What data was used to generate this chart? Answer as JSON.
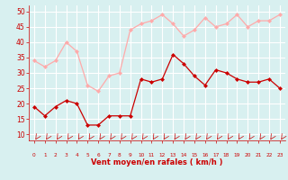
{
  "hours": [
    0,
    1,
    2,
    3,
    4,
    5,
    6,
    7,
    8,
    9,
    10,
    11,
    12,
    13,
    14,
    15,
    16,
    17,
    18,
    19,
    20,
    21,
    22,
    23
  ],
  "wind_avg": [
    19,
    16,
    19,
    21,
    20,
    13,
    13,
    16,
    16,
    16,
    28,
    27,
    28,
    36,
    33,
    29,
    26,
    31,
    30,
    28,
    27,
    27,
    28,
    25
  ],
  "wind_gust": [
    34,
    32,
    34,
    40,
    37,
    26,
    24,
    29,
    30,
    44,
    46,
    47,
    49,
    46,
    42,
    44,
    48,
    45,
    46,
    49,
    45,
    47,
    47,
    49
  ],
  "bg_color": "#d8f0f0",
  "grid_color": "#ffffff",
  "avg_color": "#cc0000",
  "gust_color": "#ffaaaa",
  "xlabel": "Vent moyen/en rafales ( km/h )",
  "xlabel_color": "#cc0000",
  "tick_color": "#cc0000",
  "arrow_color": "#cc0000",
  "ylim": [
    8,
    52
  ],
  "yticks": [
    10,
    15,
    20,
    25,
    30,
    35,
    40,
    45,
    50
  ],
  "xlim": [
    -0.5,
    23.5
  ]
}
